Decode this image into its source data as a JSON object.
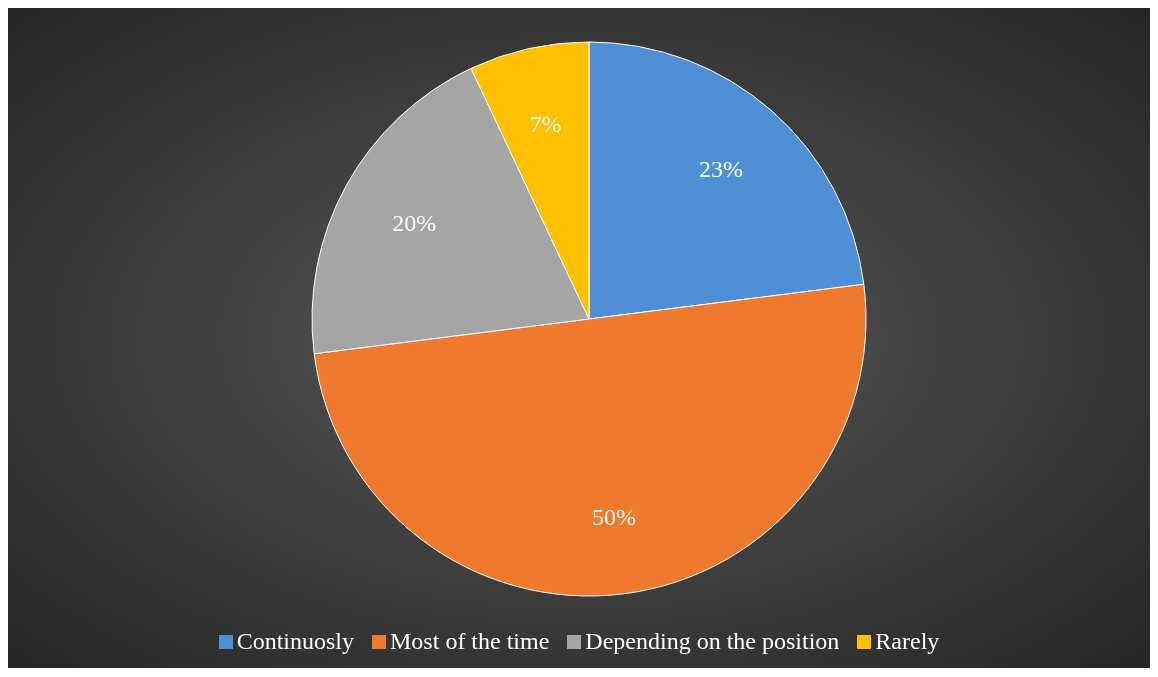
{
  "chart_data": {
    "type": "pie",
    "categories": [
      "Continuosly",
      "Most of the time",
      "Depending on the position",
      "Rarely"
    ],
    "values": [
      23,
      50,
      20,
      7
    ],
    "value_labels": [
      "23%",
      "50%",
      "20%",
      "7%"
    ],
    "colors": [
      "#4e8fd6",
      "#ef7a2e",
      "#a5a5a5",
      "#ffc000"
    ],
    "legend": "bottom"
  }
}
